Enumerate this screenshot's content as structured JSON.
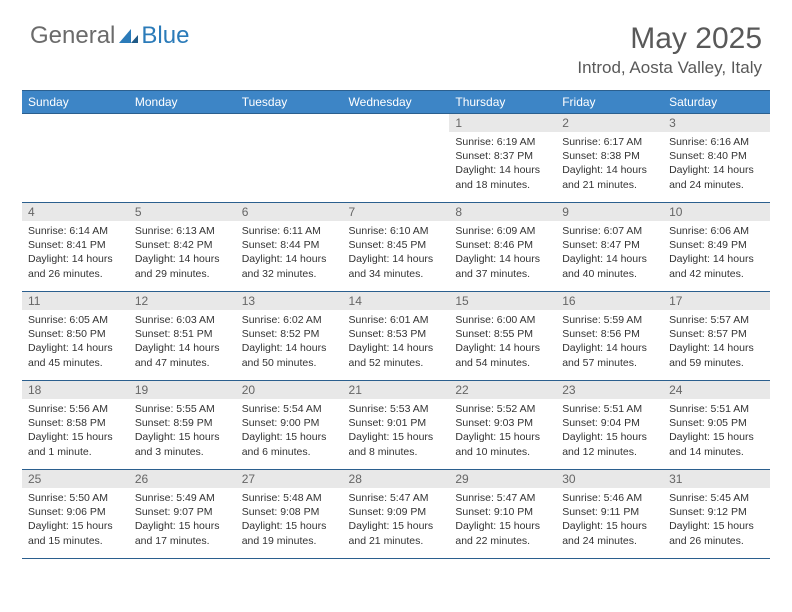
{
  "logo": {
    "part1": "General",
    "part2": "Blue"
  },
  "title": "May 2025",
  "location": "Introd, Aosta Valley, Italy",
  "colors": {
    "header_bg": "#3d85c6",
    "header_border": "#2b5f8e",
    "day_number_bg": "#e8e8e8",
    "text_muted": "#595959",
    "logo_gray": "#6b6b6b",
    "logo_blue": "#2b7bb9"
  },
  "day_headers": [
    "Sunday",
    "Monday",
    "Tuesday",
    "Wednesday",
    "Thursday",
    "Friday",
    "Saturday"
  ],
  "weeks": [
    [
      null,
      null,
      null,
      null,
      {
        "n": "1",
        "sunrise": "6:19 AM",
        "sunset": "8:37 PM",
        "daylight": "14 hours and 18 minutes."
      },
      {
        "n": "2",
        "sunrise": "6:17 AM",
        "sunset": "8:38 PM",
        "daylight": "14 hours and 21 minutes."
      },
      {
        "n": "3",
        "sunrise": "6:16 AM",
        "sunset": "8:40 PM",
        "daylight": "14 hours and 24 minutes."
      }
    ],
    [
      {
        "n": "4",
        "sunrise": "6:14 AM",
        "sunset": "8:41 PM",
        "daylight": "14 hours and 26 minutes."
      },
      {
        "n": "5",
        "sunrise": "6:13 AM",
        "sunset": "8:42 PM",
        "daylight": "14 hours and 29 minutes."
      },
      {
        "n": "6",
        "sunrise": "6:11 AM",
        "sunset": "8:44 PM",
        "daylight": "14 hours and 32 minutes."
      },
      {
        "n": "7",
        "sunrise": "6:10 AM",
        "sunset": "8:45 PM",
        "daylight": "14 hours and 34 minutes."
      },
      {
        "n": "8",
        "sunrise": "6:09 AM",
        "sunset": "8:46 PM",
        "daylight": "14 hours and 37 minutes."
      },
      {
        "n": "9",
        "sunrise": "6:07 AM",
        "sunset": "8:47 PM",
        "daylight": "14 hours and 40 minutes."
      },
      {
        "n": "10",
        "sunrise": "6:06 AM",
        "sunset": "8:49 PM",
        "daylight": "14 hours and 42 minutes."
      }
    ],
    [
      {
        "n": "11",
        "sunrise": "6:05 AM",
        "sunset": "8:50 PM",
        "daylight": "14 hours and 45 minutes."
      },
      {
        "n": "12",
        "sunrise": "6:03 AM",
        "sunset": "8:51 PM",
        "daylight": "14 hours and 47 minutes."
      },
      {
        "n": "13",
        "sunrise": "6:02 AM",
        "sunset": "8:52 PM",
        "daylight": "14 hours and 50 minutes."
      },
      {
        "n": "14",
        "sunrise": "6:01 AM",
        "sunset": "8:53 PM",
        "daylight": "14 hours and 52 minutes."
      },
      {
        "n": "15",
        "sunrise": "6:00 AM",
        "sunset": "8:55 PM",
        "daylight": "14 hours and 54 minutes."
      },
      {
        "n": "16",
        "sunrise": "5:59 AM",
        "sunset": "8:56 PM",
        "daylight": "14 hours and 57 minutes."
      },
      {
        "n": "17",
        "sunrise": "5:57 AM",
        "sunset": "8:57 PM",
        "daylight": "14 hours and 59 minutes."
      }
    ],
    [
      {
        "n": "18",
        "sunrise": "5:56 AM",
        "sunset": "8:58 PM",
        "daylight": "15 hours and 1 minute."
      },
      {
        "n": "19",
        "sunrise": "5:55 AM",
        "sunset": "8:59 PM",
        "daylight": "15 hours and 3 minutes."
      },
      {
        "n": "20",
        "sunrise": "5:54 AM",
        "sunset": "9:00 PM",
        "daylight": "15 hours and 6 minutes."
      },
      {
        "n": "21",
        "sunrise": "5:53 AM",
        "sunset": "9:01 PM",
        "daylight": "15 hours and 8 minutes."
      },
      {
        "n": "22",
        "sunrise": "5:52 AM",
        "sunset": "9:03 PM",
        "daylight": "15 hours and 10 minutes."
      },
      {
        "n": "23",
        "sunrise": "5:51 AM",
        "sunset": "9:04 PM",
        "daylight": "15 hours and 12 minutes."
      },
      {
        "n": "24",
        "sunrise": "5:51 AM",
        "sunset": "9:05 PM",
        "daylight": "15 hours and 14 minutes."
      }
    ],
    [
      {
        "n": "25",
        "sunrise": "5:50 AM",
        "sunset": "9:06 PM",
        "daylight": "15 hours and 15 minutes."
      },
      {
        "n": "26",
        "sunrise": "5:49 AM",
        "sunset": "9:07 PM",
        "daylight": "15 hours and 17 minutes."
      },
      {
        "n": "27",
        "sunrise": "5:48 AM",
        "sunset": "9:08 PM",
        "daylight": "15 hours and 19 minutes."
      },
      {
        "n": "28",
        "sunrise": "5:47 AM",
        "sunset": "9:09 PM",
        "daylight": "15 hours and 21 minutes."
      },
      {
        "n": "29",
        "sunrise": "5:47 AM",
        "sunset": "9:10 PM",
        "daylight": "15 hours and 22 minutes."
      },
      {
        "n": "30",
        "sunrise": "5:46 AM",
        "sunset": "9:11 PM",
        "daylight": "15 hours and 24 minutes."
      },
      {
        "n": "31",
        "sunrise": "5:45 AM",
        "sunset": "9:12 PM",
        "daylight": "15 hours and 26 minutes."
      }
    ]
  ],
  "labels": {
    "sunrise": "Sunrise:",
    "sunset": "Sunset:",
    "daylight": "Daylight:"
  }
}
